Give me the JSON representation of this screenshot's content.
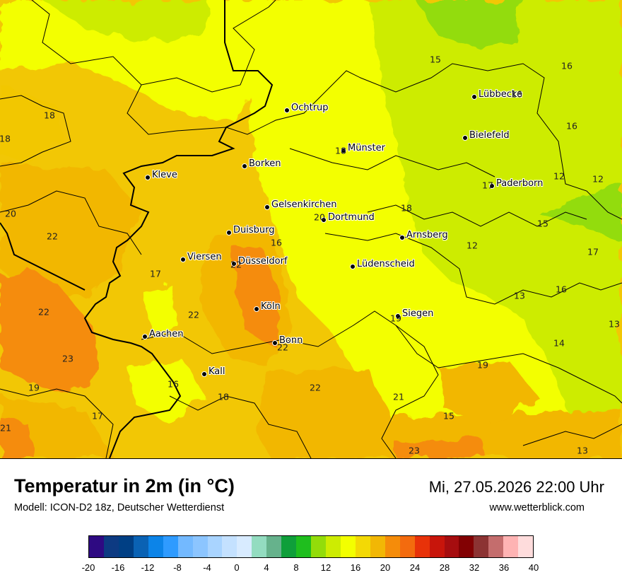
{
  "map": {
    "cities": [
      {
        "name": "Ochtrup"
      },
      {
        "name": "Lübbecke"
      },
      {
        "name": "Bielefeld"
      },
      {
        "name": "Münster"
      },
      {
        "name": "Borken"
      },
      {
        "name": "Kleve"
      },
      {
        "name": "Paderborn"
      },
      {
        "name": "Gelsenkirchen"
      },
      {
        "name": "Dortmund"
      },
      {
        "name": "Duisburg"
      },
      {
        "name": "Arnsberg"
      },
      {
        "name": "Viersen"
      },
      {
        "name": "Düsseldorf"
      },
      {
        "name": "Lüdenscheid"
      },
      {
        "name": "Köln"
      },
      {
        "name": "Siegen"
      },
      {
        "name": "Aachen"
      },
      {
        "name": "Bonn"
      },
      {
        "name": "Kall"
      }
    ],
    "values": [
      "15",
      "16",
      "16",
      "18",
      "18",
      "16",
      "18",
      "12",
      "12",
      "17",
      "20",
      "20",
      "22",
      "18",
      "15",
      "16",
      "12",
      "17",
      "17",
      "22",
      "16",
      "13",
      "22",
      "22",
      "19",
      "13",
      "14",
      "23",
      "22",
      "16",
      "18",
      "19",
      "19",
      "22",
      "21",
      "17",
      "15",
      "21",
      "23",
      "13"
    ]
  },
  "footer": {
    "title": "Temperatur in 2m (in °C)",
    "model": "Modell: ICON-D2 18z, Deutscher Wetterdienst",
    "datetime": "Mi, 27.05.2026 22:00 Uhr",
    "website": "www.wetterblick.com"
  },
  "legend": {
    "colors": [
      "#2e0a82",
      "#0d3a82",
      "#003f84",
      "#0a62b4",
      "#0c84e8",
      "#2f9bff",
      "#73b9ff",
      "#8cc5ff",
      "#a9d4ff",
      "#c4e1ff",
      "#d8ebff",
      "#93dcc0",
      "#66b28c",
      "#0f9f3a",
      "#1fbe1e",
      "#93dc0a",
      "#cdec02",
      "#f3ff00",
      "#f3d905",
      "#f2b705",
      "#f58c0a",
      "#f36b0e",
      "#e83209",
      "#c8150b",
      "#a60d0f",
      "#820103",
      "#8c3333",
      "#c46d6d",
      "#feb3b3",
      "#fedcdc"
    ],
    "ticks": [
      "-20",
      "-16",
      "-12",
      "-8",
      "-4",
      "0",
      "4",
      "8",
      "12",
      "16",
      "20",
      "24",
      "28",
      "32",
      "36",
      "40"
    ]
  }
}
